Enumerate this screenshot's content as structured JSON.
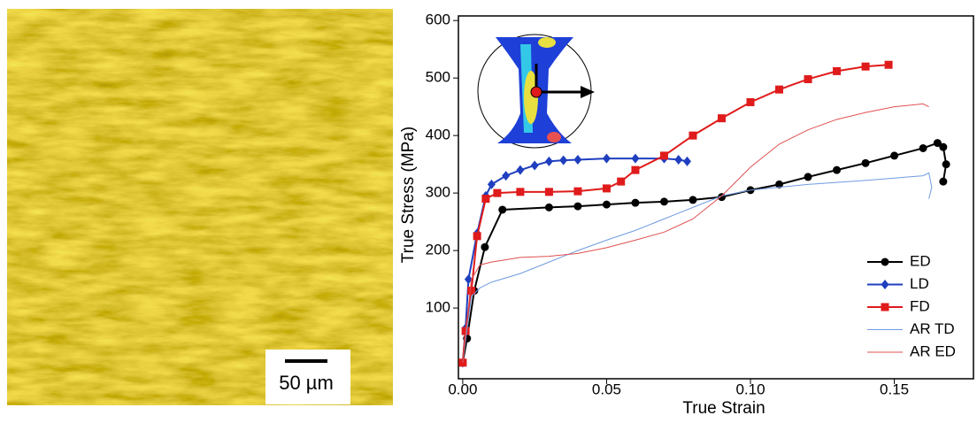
{
  "micrograph": {
    "scale_bar_label": "50 µm"
  },
  "chart_data": {
    "type": "line",
    "x_label": "True Strain",
    "y_label": "True Stress (MPa)",
    "xlim": [
      -0.0015,
      0.1775
    ],
    "ylim": [
      -23,
      608
    ],
    "xticks": [
      {
        "value": 0,
        "label": "0.00"
      },
      {
        "value": 0.05,
        "label": "0.05"
      },
      {
        "value": 0.1,
        "label": "0.10"
      },
      {
        "value": 0.15,
        "label": "0.15"
      }
    ],
    "yticks": [
      100,
      200,
      300,
      400,
      500,
      600
    ],
    "grid": false,
    "legend_position": "lower right",
    "series": [
      {
        "name": "ED",
        "color": "#000000",
        "marker": "circle",
        "line_width": 2,
        "x": [
          0,
          0.0015,
          0.004,
          0.0077,
          0.0138,
          0.03,
          0.04,
          0.05,
          0.06,
          0.07,
          0.08,
          0.09,
          0.1,
          0.11,
          0.12,
          0.13,
          0.14,
          0.15,
          0.16,
          0.165,
          0.167,
          0.168,
          0.167
        ],
        "values": [
          5,
          47,
          130,
          206,
          271,
          275,
          277,
          280,
          283,
          285,
          288,
          293,
          305,
          315,
          328,
          340,
          352,
          365,
          378,
          387,
          380,
          350,
          320
        ]
      },
      {
        "name": "LD",
        "color": "#1f3fbf",
        "marker": "diamond",
        "line_width": 2,
        "x": [
          0,
          0.001,
          0.002,
          0.005,
          0.008,
          0.01,
          0.015,
          0.02,
          0.025,
          0.03,
          0.035,
          0.04,
          0.05,
          0.06,
          0.07,
          0.075,
          0.078
        ],
        "values": [
          5,
          65,
          150,
          230,
          295,
          315,
          330,
          340,
          348,
          355,
          357,
          358,
          360,
          360,
          360,
          358,
          355
        ]
      },
      {
        "name": "FD",
        "color": "#e01b1b",
        "marker": "square",
        "line_width": 2,
        "x": [
          0,
          0.001,
          0.003,
          0.005,
          0.008,
          0.012,
          0.02,
          0.03,
          0.04,
          0.05,
          0.055,
          0.06,
          0.07,
          0.08,
          0.09,
          0.1,
          0.11,
          0.12,
          0.13,
          0.14,
          0.148
        ],
        "values": [
          5,
          60,
          130,
          225,
          290,
          300,
          302,
          302,
          303,
          308,
          320,
          340,
          365,
          400,
          430,
          458,
          480,
          498,
          512,
          520,
          523
        ]
      },
      {
        "name": "AR TD",
        "color": "#6f9be0",
        "marker": null,
        "line_width": 1,
        "x": [
          0,
          0.003,
          0.006,
          0.01,
          0.02,
          0.03,
          0.04,
          0.05,
          0.06,
          0.07,
          0.08,
          0.09,
          0.1,
          0.12,
          0.14,
          0.16,
          0.162,
          0.163,
          0.162
        ],
        "values": [
          5,
          120,
          135,
          145,
          160,
          180,
          200,
          218,
          235,
          255,
          275,
          295,
          305,
          315,
          322,
          330,
          335,
          310,
          290
        ]
      },
      {
        "name": "AR ED",
        "color": "#e05050",
        "marker": null,
        "line_width": 1,
        "x": [
          0,
          0.003,
          0.006,
          0.01,
          0.02,
          0.03,
          0.04,
          0.05,
          0.06,
          0.07,
          0.08,
          0.09,
          0.1,
          0.11,
          0.12,
          0.13,
          0.14,
          0.15,
          0.16,
          0.162
        ],
        "values": [
          5,
          150,
          175,
          180,
          188,
          190,
          195,
          205,
          218,
          232,
          255,
          295,
          345,
          385,
          410,
          428,
          440,
          450,
          455,
          450
        ]
      }
    ]
  }
}
